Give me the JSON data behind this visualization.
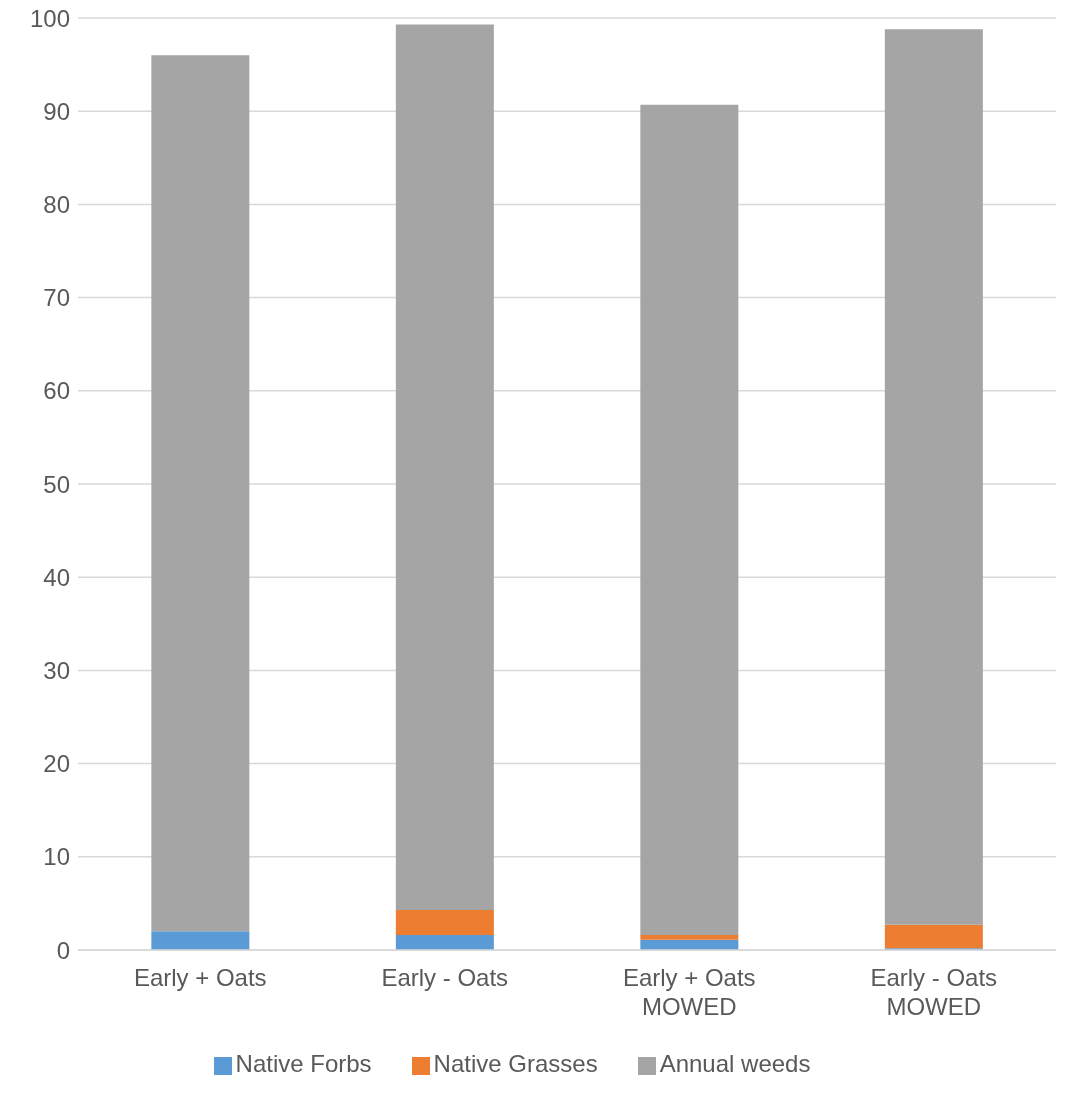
{
  "chart_data": {
    "type": "bar",
    "stacked": true,
    "categories": [
      "Early + Oats",
      "Early - Oats",
      "Early + Oats MOWED",
      "Early - Oats MOWED"
    ],
    "series": [
      {
        "name": "Native Forbs",
        "color": "#5b9bd5",
        "values": [
          2.0,
          1.6,
          1.1,
          0.2
        ]
      },
      {
        "name": "Native Grasses",
        "color": "#ed7d31",
        "values": [
          0,
          2.7,
          0.5,
          2.5
        ]
      },
      {
        "name": "Annual weeds",
        "color": "#a5a5a5",
        "values": [
          94.0,
          95.0,
          89.1,
          96.1
        ]
      }
    ],
    "ylim": [
      0,
      100
    ],
    "yticks": [
      0,
      10,
      20,
      30,
      40,
      50,
      60,
      70,
      80,
      90,
      100
    ],
    "grid": "y",
    "legend": "bottom"
  }
}
